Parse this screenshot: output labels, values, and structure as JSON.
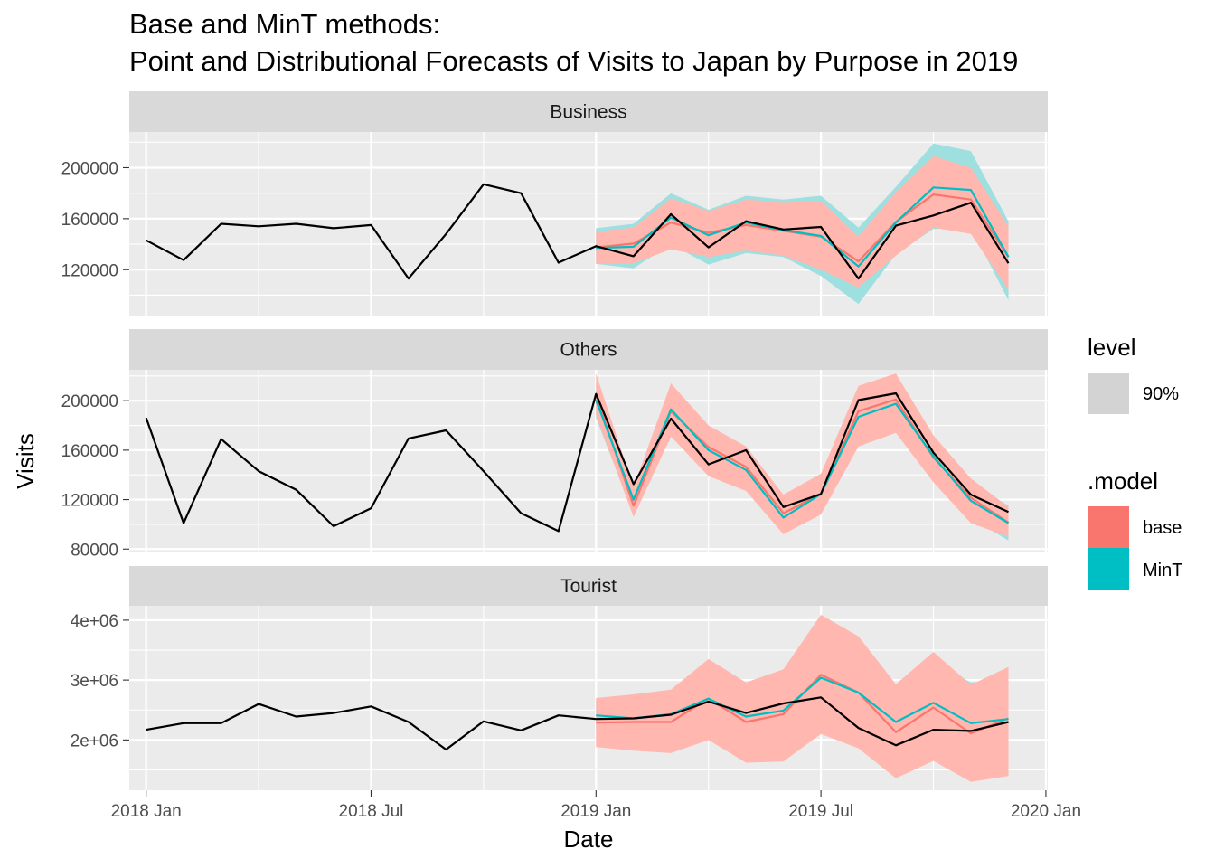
{
  "title_line1": "Base and MinT methods:",
  "title_line2": "Point and Distributional Forecasts of Visits to Japan by Purpose in 2019",
  "xlabel": "Date",
  "ylabel": "Visits",
  "legend": {
    "level_title": "level",
    "level_item": "90%",
    "model_title": ".model",
    "model_items": [
      "base",
      "MinT"
    ]
  },
  "colors": {
    "base": "#F8766D",
    "MinT": "#00BFC4",
    "base_band": "#FFB7AF",
    "MinT_band": "#9EDFE0",
    "actual": "#000000",
    "panel_bg": "#EBEBEB",
    "strip_bg": "#D9D9D9",
    "level_key": "#D3D3D3"
  },
  "chart_data": {
    "type": "line",
    "x_dates": [
      "2018-01",
      "2018-02",
      "2018-03",
      "2018-04",
      "2018-05",
      "2018-06",
      "2018-07",
      "2018-08",
      "2018-09",
      "2018-10",
      "2018-11",
      "2018-12",
      "2019-01",
      "2019-02",
      "2019-03",
      "2019-04",
      "2019-05",
      "2019-06",
      "2019-07",
      "2019-08",
      "2019-09",
      "2019-10",
      "2019-11",
      "2019-12"
    ],
    "forecast_start_index": 12,
    "x_ticks": [
      "2018 Jan",
      "2018 Jul",
      "2019 Jan",
      "2019 Jul",
      "2020 Jan"
    ],
    "x_tick_dates": [
      "2018-01",
      "2018-07",
      "2019-01",
      "2019-07",
      "2020-01"
    ],
    "xlim": [
      "2017-12",
      "2020-01"
    ],
    "grid": true,
    "legend_position": "right",
    "panels": [
      {
        "name": "Business",
        "ylim": [
          84000,
          228000
        ],
        "y_ticks": [
          120000,
          160000,
          200000
        ],
        "y_tick_labels": [
          "120000",
          "160000",
          "200000"
        ],
        "actual": [
          143000,
          127500,
          156000,
          154000,
          156000,
          152500,
          155000,
          113000,
          148000,
          187000,
          180000,
          125500,
          138500,
          130500,
          163500,
          137500,
          158000,
          151500,
          153500,
          113000,
          154500,
          162500,
          172500,
          125000
        ],
        "base": {
          "mean": [
            137500,
            140500,
            157000,
            149000,
            155000,
            150500,
            146000,
            126500,
            157500,
            179000,
            175000,
            130000
          ],
          "lower": [
            125000,
            125000,
            136000,
            130000,
            135000,
            131000,
            120000,
            106000,
            131000,
            153000,
            148000,
            104000
          ],
          "upper": [
            150000,
            153000,
            176000,
            166000,
            175000,
            173000,
            174000,
            146000,
            181000,
            209000,
            200000,
            154000
          ]
        },
        "MinT": {
          "mean": [
            137000,
            138000,
            161000,
            147000,
            157000,
            151000,
            146500,
            122500,
            157000,
            184500,
            182500,
            130000
          ],
          "lower": [
            124500,
            121000,
            140000,
            124000,
            133000,
            130000,
            115000,
            93000,
            132000,
            152000,
            153000,
            96000
          ],
          "upper": [
            152500,
            156000,
            180000,
            167000,
            178000,
            175000,
            178000,
            153000,
            185000,
            219000,
            213000,
            158000
          ]
        }
      },
      {
        "name": "Others",
        "ylim": [
          78000,
          225000
        ],
        "y_ticks": [
          80000,
          120000,
          160000,
          200000
        ],
        "y_tick_labels": [
          "80000",
          "120000",
          "160000",
          "200000"
        ],
        "actual": [
          186000,
          101000,
          169000,
          143000,
          128000,
          98500,
          113000,
          169500,
          176000,
          143000,
          109000,
          94500,
          205500,
          132500,
          185500,
          148500,
          160000,
          114000,
          124500,
          200500,
          206000,
          158000,
          124000,
          110000
        ],
        "base": {
          "mean": [
            204500,
            115000,
            191500,
            162500,
            146500,
            109000,
            124500,
            191500,
            201000,
            154000,
            121500,
            101500
          ],
          "lower": [
            188000,
            106000,
            171000,
            139000,
            127000,
            92000,
            108000,
            163000,
            174000,
            134000,
            101000,
            90000
          ],
          "upper": [
            222000,
            130000,
            214000,
            180000,
            163000,
            124000,
            141000,
            212000,
            222000,
            172000,
            137000,
            114000
          ]
        },
        "MinT": {
          "mean": [
            200500,
            120000,
            193000,
            160000,
            144000,
            105500,
            124500,
            187000,
            197500,
            155000,
            119000,
            101000
          ],
          "lower": [
            186000,
            108000,
            177000,
            143000,
            130000,
            96000,
            113000,
            167000,
            178000,
            139000,
            105000,
            87000
          ],
          "upper": [
            214000,
            131000,
            208000,
            176000,
            158000,
            116000,
            138000,
            208000,
            220000,
            169000,
            134000,
            115000
          ]
        }
      },
      {
        "name": "Tourist",
        "ylim": [
          1160000,
          4240000
        ],
        "y_ticks": [
          2000000,
          3000000,
          4000000
        ],
        "y_tick_labels": [
          "2e+06",
          "3e+06",
          "4e+06"
        ],
        "actual": [
          2170000,
          2280000,
          2280000,
          2600000,
          2390000,
          2450000,
          2560000,
          2300000,
          1840000,
          2310000,
          2160000,
          2410000,
          2350000,
          2360000,
          2420000,
          2640000,
          2450000,
          2610000,
          2710000,
          2200000,
          1910000,
          2170000,
          2150000,
          2300000
        ],
        "base": {
          "mean": [
            2290000,
            2300000,
            2300000,
            2690000,
            2300000,
            2430000,
            3090000,
            2790000,
            2130000,
            2540000,
            2110000,
            2360000
          ],
          "lower": [
            1880000,
            1820000,
            1780000,
            2000000,
            1620000,
            1640000,
            2100000,
            1860000,
            1360000,
            1650000,
            1300000,
            1400000
          ],
          "upper": [
            2700000,
            2760000,
            2840000,
            3350000,
            2960000,
            3180000,
            4090000,
            3730000,
            2930000,
            3470000,
            2920000,
            3220000
          ]
        },
        "MinT": {
          "mean": [
            2410000,
            2360000,
            2430000,
            2690000,
            2390000,
            2490000,
            3040000,
            2790000,
            2300000,
            2620000,
            2280000,
            2350000
          ],
          "lower": [
            2170000,
            2060000,
            2040000,
            2220000,
            1960000,
            1950000,
            2380000,
            2120000,
            1710000,
            1970000,
            1600000,
            1720000
          ],
          "upper": [
            2650000,
            2660000,
            2800000,
            3120000,
            2820000,
            2970000,
            3690000,
            3450000,
            2890000,
            3290000,
            2960000,
            2990000
          ]
        }
      }
    ]
  }
}
